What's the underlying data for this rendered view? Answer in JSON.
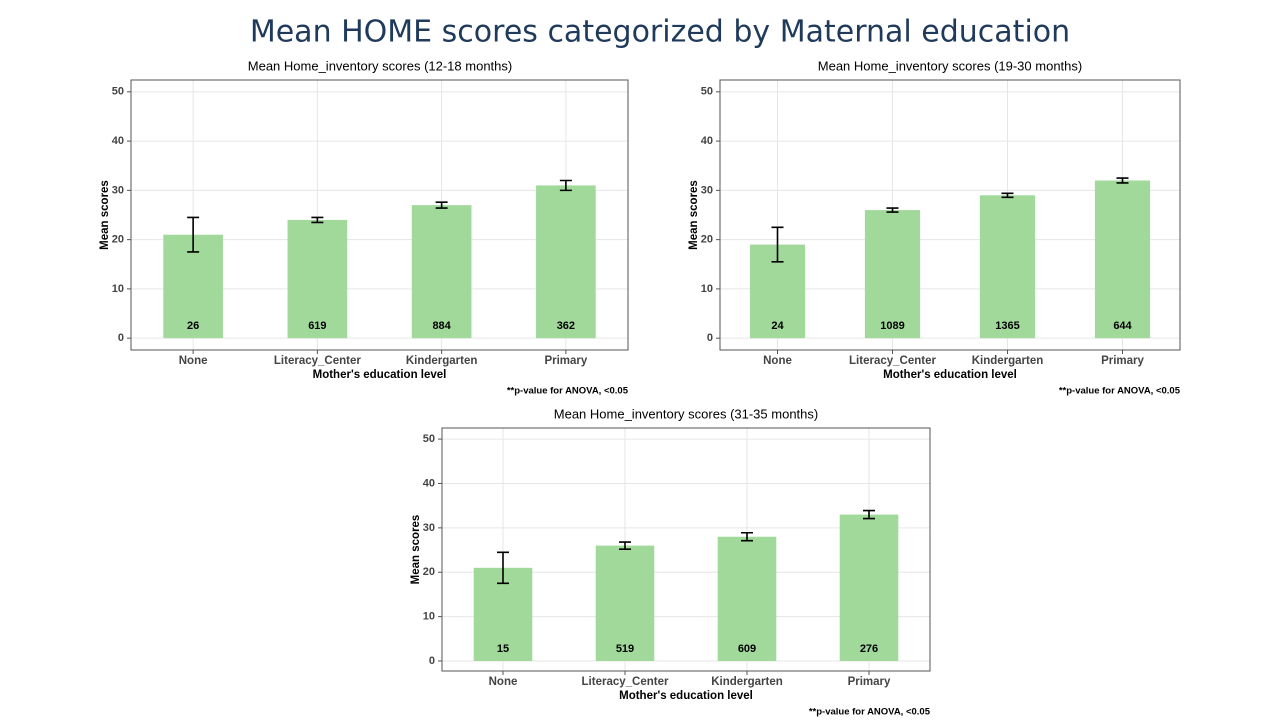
{
  "title": "Mean HOME scores categorized by Maternal education",
  "chart_data": [
    {
      "type": "bar",
      "title": "Mean Home_inventory scores (12-18 months)",
      "x_label": "Mother's education level",
      "y_label": "Mean scores",
      "note": "**p-value  for ANOVA,  <0.05",
      "categories": [
        "None",
        "Literacy_Center",
        "Kindergarten",
        "Primary"
      ],
      "values": [
        21,
        24,
        27,
        31
      ],
      "errors": [
        3.5,
        0.5,
        0.6,
        1
      ],
      "n": [
        26,
        619,
        884,
        362
      ],
      "color": "#a1d99b",
      "ylim": [
        -2.4,
        52.4
      ],
      "yticks": [
        0,
        10,
        20,
        30,
        40,
        50
      ],
      "grid": true
    },
    {
      "type": "bar",
      "title": "Mean Home_inventory scores (19-30 months)",
      "x_label": "Mother's education level",
      "y_label": "Mean scores",
      "note": "**p-value  for ANOVA,  <0.05",
      "categories": [
        "None",
        "Literacy_Center",
        "Kindergarten",
        "Primary"
      ],
      "values": [
        19,
        26,
        29,
        32
      ],
      "errors": [
        3.5,
        0.4,
        0.4,
        0.5
      ],
      "n": [
        24,
        1089,
        1365,
        644
      ],
      "color": "#a1d99b",
      "ylim": [
        -2.4,
        52.4
      ],
      "yticks": [
        0,
        10,
        20,
        30,
        40,
        50
      ],
      "grid": true
    },
    {
      "type": "bar",
      "title": "Mean Home_inventory scores (31-35 months)",
      "x_label": "Mother's education level",
      "y_label": "Mean scores",
      "note": "**p-value  for ANOVA,  <0.05",
      "categories": [
        "None",
        "Literacy_Center",
        "Kindergarten",
        "Primary"
      ],
      "values": [
        21,
        26,
        28,
        33
      ],
      "errors": [
        3.5,
        0.8,
        0.9,
        0.9
      ],
      "n": [
        15,
        519,
        609,
        276
      ],
      "color": "#a1d99b",
      "ylim": [
        -2.25,
        52.5
      ],
      "yticks": [
        0,
        10,
        20,
        30,
        40,
        50
      ],
      "grid": true
    }
  ]
}
